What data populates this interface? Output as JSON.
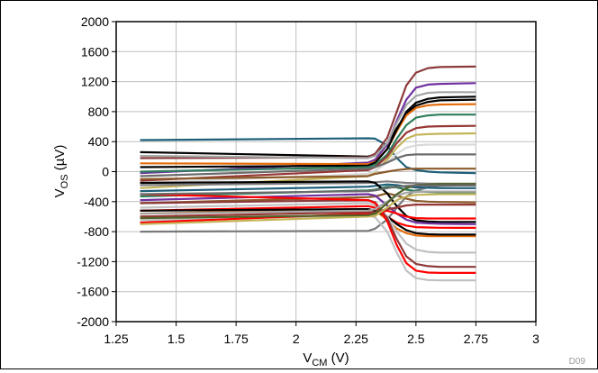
{
  "chart_data": {
    "type": "line",
    "title": "",
    "xlabel": {
      "main": "V",
      "sub": "CM",
      "unit": " (V)"
    },
    "ylabel": {
      "main": "V",
      "sub": "OS",
      "unit": " (µV)"
    },
    "xlim": [
      1.25,
      3
    ],
    "ylim": [
      -2000,
      2000
    ],
    "xticks": [
      1.25,
      1.5,
      1.75,
      2,
      2.25,
      2.5,
      2.75,
      3
    ],
    "xtick_labels": [
      "1.25",
      "1.5",
      "1.75",
      "2",
      "2.25",
      "2.5",
      "2.75",
      "3"
    ],
    "yticks": [
      2000,
      1600,
      1200,
      800,
      400,
      0,
      -400,
      -800,
      -1200,
      -1600,
      -2000
    ],
    "ytick_labels": [
      "2000",
      "1600",
      "1200",
      "800",
      "400",
      "0",
      "-400",
      "-800",
      "-1200",
      "-1600",
      "-2000"
    ],
    "grid": true,
    "legend": "none",
    "code_label": "D09",
    "x": [
      1.35,
      2.3,
      2.33,
      2.38,
      2.42,
      2.46,
      2.5,
      2.55,
      2.6,
      2.75
    ],
    "series": [
      {
        "color": "#1f5f7a",
        "values": [
          420,
          445,
          440,
          350,
          180,
          60,
          20,
          0,
          -10,
          -20
        ]
      },
      {
        "color": "#7a7a7a",
        "values": [
          -800,
          -790,
          -760,
          -640,
          -480,
          -330,
          -250,
          -210,
          -190,
          -180
        ]
      },
      {
        "color": "#000000",
        "values": [
          260,
          200,
          230,
          380,
          580,
          770,
          880,
          930,
          950,
          960
        ]
      },
      {
        "color": "#8b3a3a",
        "values": [
          180,
          190,
          240,
          450,
          800,
          1150,
          1320,
          1380,
          1395,
          1400
        ]
      },
      {
        "color": "#7030a0",
        "values": [
          -20,
          120,
          160,
          360,
          680,
          960,
          1120,
          1160,
          1170,
          1180
        ]
      },
      {
        "color": "#a5a5a5",
        "values": [
          210,
          180,
          210,
          380,
          650,
          890,
          1010,
          1050,
          1060,
          1060
        ]
      },
      {
        "color": "#e46c0a",
        "values": [
          110,
          100,
          130,
          300,
          540,
          750,
          850,
          885,
          895,
          900
        ]
      },
      {
        "color": "#000000",
        "values": [
          60,
          80,
          120,
          300,
          560,
          800,
          920,
          970,
          990,
          1000
        ]
      },
      {
        "color": "#2e7d5b",
        "values": [
          0,
          60,
          90,
          230,
          440,
          620,
          720,
          750,
          760,
          760
        ]
      },
      {
        "color": "#953735",
        "values": [
          -120,
          20,
          60,
          200,
          380,
          520,
          580,
          600,
          605,
          610
        ]
      },
      {
        "color": "#c4b45a",
        "values": [
          -220,
          -60,
          0,
          160,
          320,
          440,
          490,
          500,
          505,
          510
        ]
      },
      {
        "color": "#d9d9d9",
        "values": [
          -150,
          -30,
          10,
          120,
          240,
          320,
          350,
          360,
          360,
          360
        ]
      },
      {
        "color": "#6b6b6b",
        "values": [
          -60,
          40,
          60,
          120,
          180,
          220,
          230,
          230,
          230,
          230
        ]
      },
      {
        "color": "#8b5a2b",
        "values": [
          -100,
          -60,
          -30,
          0,
          20,
          35,
          40,
          40,
          40,
          40
        ]
      },
      {
        "color": "#7f7f7f",
        "values": [
          -180,
          -150,
          -140,
          -130,
          -140,
          -150,
          -155,
          -160,
          -160,
          -160
        ]
      },
      {
        "color": "#1f5f7a",
        "values": [
          -260,
          -200,
          -190,
          -170,
          -180,
          -200,
          -210,
          -215,
          -220,
          -220
        ]
      },
      {
        "color": "#2e7d5b",
        "values": [
          -330,
          -250,
          -240,
          -200,
          -210,
          -240,
          -260,
          -270,
          -275,
          -280
        ]
      },
      {
        "color": "#8b5a2b",
        "values": [
          -420,
          -340,
          -330,
          -290,
          -320,
          -360,
          -390,
          -400,
          -405,
          -410
        ]
      },
      {
        "color": "#000000",
        "values": [
          -150,
          -130,
          -150,
          -290,
          -460,
          -590,
          -650,
          -665,
          -670,
          -670
        ]
      },
      {
        "color": "#7030a0",
        "values": [
          -380,
          -300,
          -320,
          -450,
          -560,
          -640,
          -680,
          -690,
          -695,
          -700
        ]
      },
      {
        "color": "#ff0000",
        "values": [
          -520,
          -460,
          -480,
          -600,
          -680,
          -720,
          -740,
          -745,
          -748,
          -750
        ]
      },
      {
        "color": "#e46c0a",
        "values": [
          -560,
          -500,
          -520,
          -640,
          -760,
          -820,
          -850,
          -860,
          -860,
          -860
        ]
      },
      {
        "color": "#000000",
        "values": [
          -520,
          -500,
          -520,
          -600,
          -700,
          -780,
          -820,
          -835,
          -840,
          -840
        ]
      },
      {
        "color": "#c0c0c0",
        "values": [
          -480,
          -420,
          -450,
          -600,
          -800,
          -960,
          -1040,
          -1070,
          -1080,
          -1080
        ]
      },
      {
        "color": "#8b3a3a",
        "values": [
          -420,
          -380,
          -410,
          -620,
          -900,
          -1130,
          -1230,
          -1260,
          -1270,
          -1270
        ]
      },
      {
        "color": "#ff0000",
        "values": [
          -300,
          -380,
          -420,
          -660,
          -980,
          -1220,
          -1320,
          -1345,
          -1350,
          -1350
        ]
      },
      {
        "color": "#c0c0c0",
        "values": [
          -650,
          -580,
          -610,
          -800,
          -1080,
          -1320,
          -1420,
          -1445,
          -1450,
          -1450
        ]
      },
      {
        "color": "#ff0000",
        "values": [
          -680,
          -560,
          -560,
          -520,
          -560,
          -600,
          -620,
          -625,
          -625,
          -625
        ]
      },
      {
        "color": "#953735",
        "values": [
          -600,
          -540,
          -540,
          -500,
          -480,
          -450,
          -440,
          -440,
          -440,
          -440
        ]
      },
      {
        "color": "#c4b45a",
        "values": [
          -700,
          -600,
          -590,
          -480,
          -380,
          -330,
          -310,
          -305,
          -300,
          -300
        ]
      },
      {
        "color": "#a5a5a5",
        "values": [
          -560,
          -520,
          -500,
          -400,
          -320,
          -280,
          -270,
          -265,
          -265,
          -265
        ]
      },
      {
        "color": "#4f6228",
        "values": [
          -620,
          -580,
          -560,
          -420,
          -300,
          -220,
          -180,
          -170,
          -165,
          -165
        ]
      },
      {
        "color": "#6b6b6b",
        "values": [
          -300,
          -260,
          -250,
          -220,
          -200,
          -190,
          -185,
          -185,
          -185,
          -185
        ]
      }
    ]
  }
}
